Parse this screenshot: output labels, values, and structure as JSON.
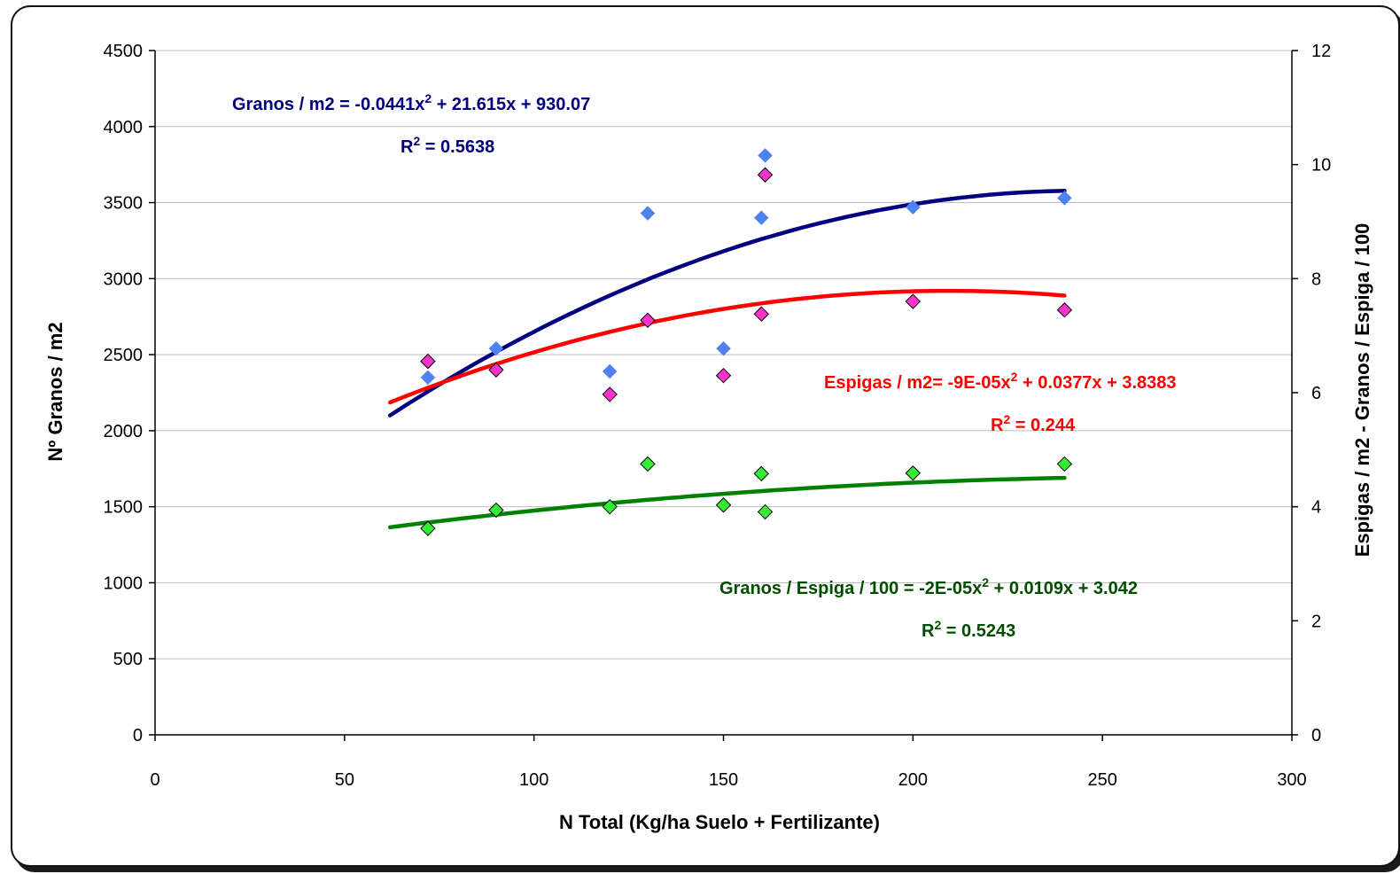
{
  "chart_data": {
    "type": "scatter",
    "x_axis": {
      "label": "N Total (Kg/ha Suelo + Fertilizante)",
      "range": [
        0,
        300
      ],
      "ticks": [
        0,
        50,
        100,
        150,
        200,
        250,
        300
      ]
    },
    "y_left": {
      "label": "Nº Granos / m2",
      "range": [
        0,
        4500
      ],
      "ticks": [
        0,
        500,
        1000,
        1500,
        2000,
        2500,
        3000,
        3500,
        4000,
        4500
      ]
    },
    "y_right": {
      "label": "Espigas / m2 - Granos / Espiga / 100",
      "range": [
        0,
        12
      ],
      "ticks": [
        0,
        2,
        4,
        6,
        8,
        10,
        12
      ]
    },
    "grid": "horizontal",
    "series": [
      {
        "axis": "left",
        "color": "#4f81f0",
        "trend_color": "#000080",
        "marker": "diamond",
        "points": [
          [
            72,
            2350
          ],
          [
            90,
            2540
          ],
          [
            120,
            2390
          ],
          [
            130,
            3430
          ],
          [
            150,
            2540
          ],
          [
            160,
            3400
          ],
          [
            161,
            3810
          ],
          [
            200,
            3470
          ],
          [
            240,
            3530
          ]
        ],
        "trend": {
          "a": -0.0441,
          "b": 21.615,
          "c": 930.07,
          "x_range": [
            62,
            240
          ]
        },
        "equation": {
          "lhs": "Granos / m2 = -0.0441x",
          "rhs": " + 21.615x + 930.07",
          "r2_prefix": "R",
          "r2_value": " = 0.5638"
        }
      },
      {
        "axis": "right",
        "color": "#ff33cc",
        "trend_color": "#ff0000",
        "marker": "diamond",
        "points": [
          [
            72,
            6.55
          ],
          [
            90,
            6.4
          ],
          [
            120,
            5.97
          ],
          [
            130,
            7.27
          ],
          [
            150,
            6.3
          ],
          [
            160,
            7.38
          ],
          [
            161,
            9.82
          ],
          [
            200,
            7.6
          ],
          [
            240,
            7.45
          ]
        ],
        "trend": {
          "a": -9e-05,
          "b": 0.0377,
          "c": 3.8383,
          "x_range": [
            62,
            240
          ]
        },
        "equation": {
          "lhs": "Espigas / m2= -9E-05x",
          "rhs": " + 0.0377x + 3.8383",
          "r2_prefix": "R",
          "r2_value": " = 0.244"
        }
      },
      {
        "axis": "right",
        "color": "#33ee33",
        "trend_color": "#008000",
        "marker": "diamond",
        "points": [
          [
            72,
            3.62
          ],
          [
            90,
            3.94
          ],
          [
            120,
            4.0
          ],
          [
            130,
            4.75
          ],
          [
            150,
            4.03
          ],
          [
            160,
            4.58
          ],
          [
            161,
            3.91
          ],
          [
            200,
            4.59
          ],
          [
            240,
            4.75
          ]
        ],
        "trend": {
          "a": -2e-05,
          "b": 0.0109,
          "c": 3.042,
          "x_range": [
            62,
            240
          ]
        },
        "equation": {
          "lhs": "Granos / Espiga / 100 = -2E-05x",
          "rhs": " + 0.0109x + 3.042",
          "r2_prefix": "R",
          "r2_value": " = 0.5243"
        }
      }
    ]
  },
  "colors": {
    "eq_granos": "#00007f",
    "eq_espigas": "#ff0000",
    "eq_granos_espiga": "#004d00"
  }
}
